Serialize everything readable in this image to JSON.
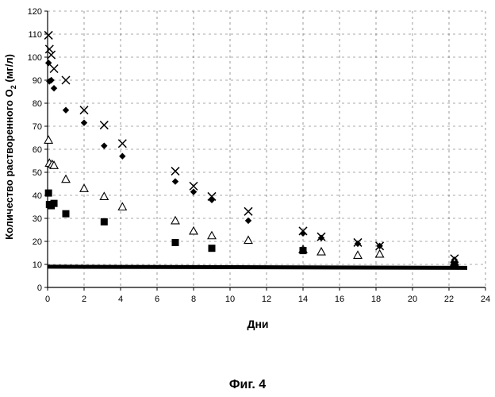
{
  "figure_caption": "Фиг. 4",
  "chart_data": {
    "type": "scatter",
    "title": "",
    "xlabel": "Дни",
    "ylabel_main": "Количество растворенного O",
    "ylabel_sub": "2",
    "ylabel_unit": " (мг/л)",
    "xlim": [
      0,
      24
    ],
    "ylim": [
      0,
      120
    ],
    "xticks": [
      0,
      2,
      4,
      6,
      8,
      10,
      12,
      14,
      16,
      18,
      20,
      22,
      24
    ],
    "yticks": [
      0,
      10,
      20,
      30,
      40,
      50,
      60,
      70,
      80,
      90,
      100,
      110,
      120
    ],
    "grid": "dashed",
    "series": [
      {
        "marker": "cross",
        "color": "#000000",
        "points": [
          [
            0.05,
            109.5
          ],
          [
            0.1,
            103.5
          ],
          [
            0.2,
            101
          ],
          [
            0.35,
            95
          ],
          [
            1.0,
            90
          ],
          [
            2.0,
            77
          ],
          [
            3.1,
            70.5
          ],
          [
            4.1,
            62.5
          ],
          [
            7.0,
            50.5
          ],
          [
            8.0,
            44
          ],
          [
            9.0,
            39.5
          ],
          [
            11.0,
            33
          ],
          [
            14.0,
            24.5
          ],
          [
            15.0,
            22
          ],
          [
            17.0,
            19.5
          ],
          [
            18.2,
            18
          ],
          [
            22.3,
            12.5
          ]
        ]
      },
      {
        "marker": "diamond",
        "color": "#000000",
        "points": [
          [
            0.05,
            97.5
          ],
          [
            0.1,
            89.5
          ],
          [
            0.2,
            90
          ],
          [
            0.35,
            86.5
          ],
          [
            1.0,
            77
          ],
          [
            2.0,
            71.5
          ],
          [
            3.1,
            61.5
          ],
          [
            4.1,
            57
          ],
          [
            7.0,
            46
          ],
          [
            8.0,
            41.5
          ],
          [
            9.0,
            38
          ],
          [
            11.0,
            29
          ],
          [
            14.0,
            23.5
          ],
          [
            15.0,
            21.5
          ],
          [
            17.0,
            19
          ],
          [
            18.2,
            18
          ],
          [
            22.3,
            12
          ]
        ]
      },
      {
        "marker": "triangle-open",
        "color": "#000000",
        "points": [
          [
            0.05,
            64
          ],
          [
            0.1,
            54
          ],
          [
            0.25,
            53.5
          ],
          [
            0.35,
            53
          ],
          [
            1.0,
            47
          ],
          [
            2.0,
            43
          ],
          [
            3.1,
            39.5
          ],
          [
            4.1,
            35
          ],
          [
            7.0,
            29
          ],
          [
            8.0,
            24.5
          ],
          [
            9.0,
            22.5
          ],
          [
            11.0,
            20.5
          ],
          [
            14.0,
            16.5
          ],
          [
            15.0,
            15.5
          ],
          [
            17.0,
            14
          ],
          [
            18.2,
            14.5
          ],
          [
            22.3,
            11
          ]
        ]
      },
      {
        "marker": "square",
        "color": "#000000",
        "points": [
          [
            0.05,
            41
          ],
          [
            0.1,
            36
          ],
          [
            0.2,
            35.5
          ],
          [
            0.35,
            36.5
          ],
          [
            1.0,
            32
          ],
          [
            3.1,
            28.5
          ],
          [
            7.0,
            19.5
          ],
          [
            9.0,
            17
          ],
          [
            14.0,
            16
          ],
          [
            22.3,
            10
          ]
        ]
      }
    ],
    "reference_line": {
      "x": [
        0,
        23
      ],
      "y": [
        9,
        8.5
      ],
      "color": "#000000"
    }
  }
}
